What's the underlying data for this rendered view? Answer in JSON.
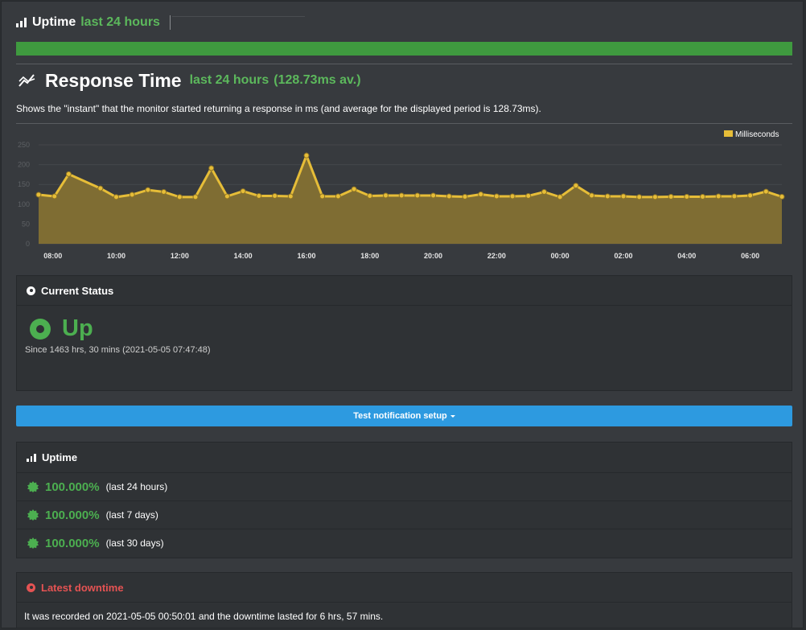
{
  "uptime_header": {
    "title": "Uptime",
    "period": "last 24 hours"
  },
  "response_time": {
    "title": "Response Time",
    "period": "last 24 hours",
    "average": "(128.73ms av.)",
    "description": "Shows the \"instant\" that the monitor started returning a response in ms (and average for the displayed period is 128.73ms)."
  },
  "chart_data": {
    "type": "area",
    "legend": "Milliseconds",
    "legend_position": "top-right",
    "ylim": [
      0,
      250
    ],
    "y_ticks": [
      "0",
      "50",
      "100",
      "150",
      "200",
      "250"
    ],
    "x_tick_labels": [
      "08:00",
      "10:00",
      "12:00",
      "14:00",
      "16:00",
      "18:00",
      "20:00",
      "22:00",
      "00:00",
      "02:00",
      "04:00",
      "06:00"
    ],
    "x_tick_hours": [
      8,
      10,
      12,
      14,
      16,
      18,
      20,
      22,
      24,
      26,
      28,
      30
    ],
    "x_range_hours": [
      7.55,
      31.0
    ],
    "x_hours": [
      7.55,
      8.05,
      8.5,
      9.5,
      10.0,
      10.5,
      11.0,
      11.5,
      12.0,
      12.5,
      13.0,
      13.5,
      14.0,
      14.5,
      15.0,
      15.5,
      16.0,
      16.5,
      17.0,
      17.5,
      18.0,
      18.5,
      19.0,
      19.5,
      20.0,
      20.5,
      21.0,
      21.5,
      22.0,
      22.5,
      23.0,
      23.5,
      24.0,
      24.5,
      25.0,
      25.5,
      26.0,
      26.5,
      27.0,
      27.5,
      28.0,
      28.5,
      29.0,
      29.5,
      30.0,
      30.5,
      31.0
    ],
    "values": [
      124,
      120,
      176,
      140,
      118,
      124,
      136,
      131,
      118,
      118,
      191,
      120,
      133,
      121,
      121,
      120,
      223,
      120,
      120,
      138,
      121,
      122,
      122,
      122,
      122,
      120,
      119,
      125,
      120,
      120,
      121,
      131,
      118,
      147,
      122,
      120,
      120,
      118,
      118,
      119,
      119,
      119,
      120,
      120,
      122,
      132,
      119
    ],
    "series_color": "#e6bd38",
    "fill_color": "#7f6d33",
    "grid": true
  },
  "current_status": {
    "header": "Current Status",
    "status": "Up",
    "since": "Since 1463 hrs, 30 mins (2021-05-05 07:47:48)"
  },
  "test_button": {
    "label": "Test notification setup"
  },
  "uptime_panel": {
    "header": "Uptime",
    "rows": [
      {
        "pct": "100.000%",
        "period": "(last 24 hours)"
      },
      {
        "pct": "100.000%",
        "period": "(last 7 days)"
      },
      {
        "pct": "100.000%",
        "period": "(last 30 days)"
      }
    ]
  },
  "latest_downtime": {
    "header": "Latest downtime",
    "text": "It was recorded on 2021-05-05 00:50:01 and the downtime lasted for 6 hrs, 57 mins."
  },
  "colors": {
    "accent_green": "#4caf50",
    "button_blue": "#2d9ae0",
    "alert_red": "#e55353"
  }
}
